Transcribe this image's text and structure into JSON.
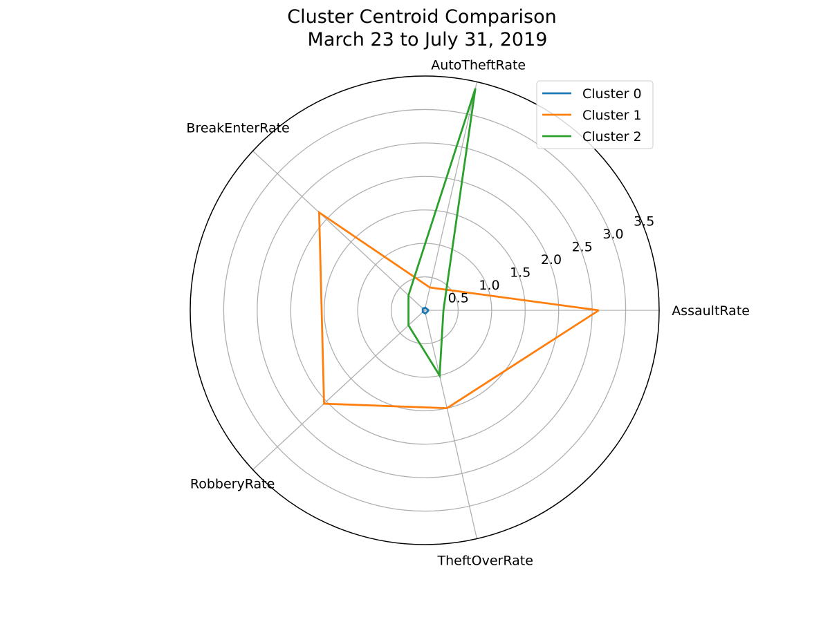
{
  "chart_data": {
    "type": "radar",
    "title": "Cluster Centroid Comparison",
    "subtitle": "March 23 to July 31, 2019",
    "axes": [
      "AssaultRate",
      "AutoTheftRate",
      "BreakEnterRate",
      "RobberyRate",
      "TheftOverRate"
    ],
    "axis_angles_deg": [
      0,
      77.14,
      137.14,
      222.86,
      282.86
    ],
    "radial_ticks": [
      "0.5",
      "1.0",
      "1.5",
      "2.0",
      "2.5",
      "3.0",
      "3.5"
    ],
    "rlim": [
      0,
      3.5
    ],
    "grid": true,
    "legend_position": "top-right",
    "series": [
      {
        "name": "Cluster 0",
        "color": "#1f77b4",
        "values": [
          0.06,
          0.04,
          0.04,
          0.04,
          0.05
        ]
      },
      {
        "name": "Cluster 1",
        "color": "#ff7f0e",
        "values": [
          2.6,
          0.35,
          2.15,
          2.05,
          1.5
        ]
      },
      {
        "name": "Cluster 2",
        "color": "#2ca02c",
        "values": [
          0.28,
          3.4,
          0.33,
          0.33,
          1.0
        ]
      }
    ]
  }
}
